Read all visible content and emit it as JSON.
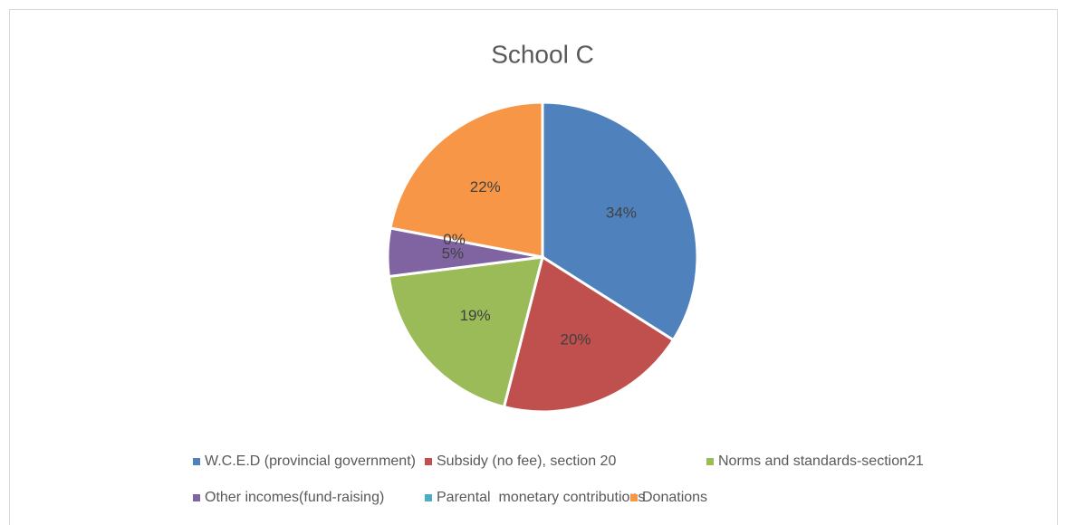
{
  "chart_data": {
    "type": "pie",
    "title": "School C",
    "categories": [
      "W.C.E.D (provincial government)",
      "Subsidy (no fee), section 20",
      "Norms and standards-section21",
      "Other incomes(fund-raising)",
      "Parental  monetary contributions",
      "Donations"
    ],
    "values": [
      34,
      20,
      19,
      5,
      0,
      22
    ],
    "value_labels": [
      "34%",
      "20%",
      "19%",
      "5%",
      "0%",
      "22%"
    ],
    "colors": [
      "#4f81bd",
      "#c0504d",
      "#9bbb59",
      "#8064a2",
      "#4bacc6",
      "#f79646"
    ],
    "legend": "bottom"
  }
}
